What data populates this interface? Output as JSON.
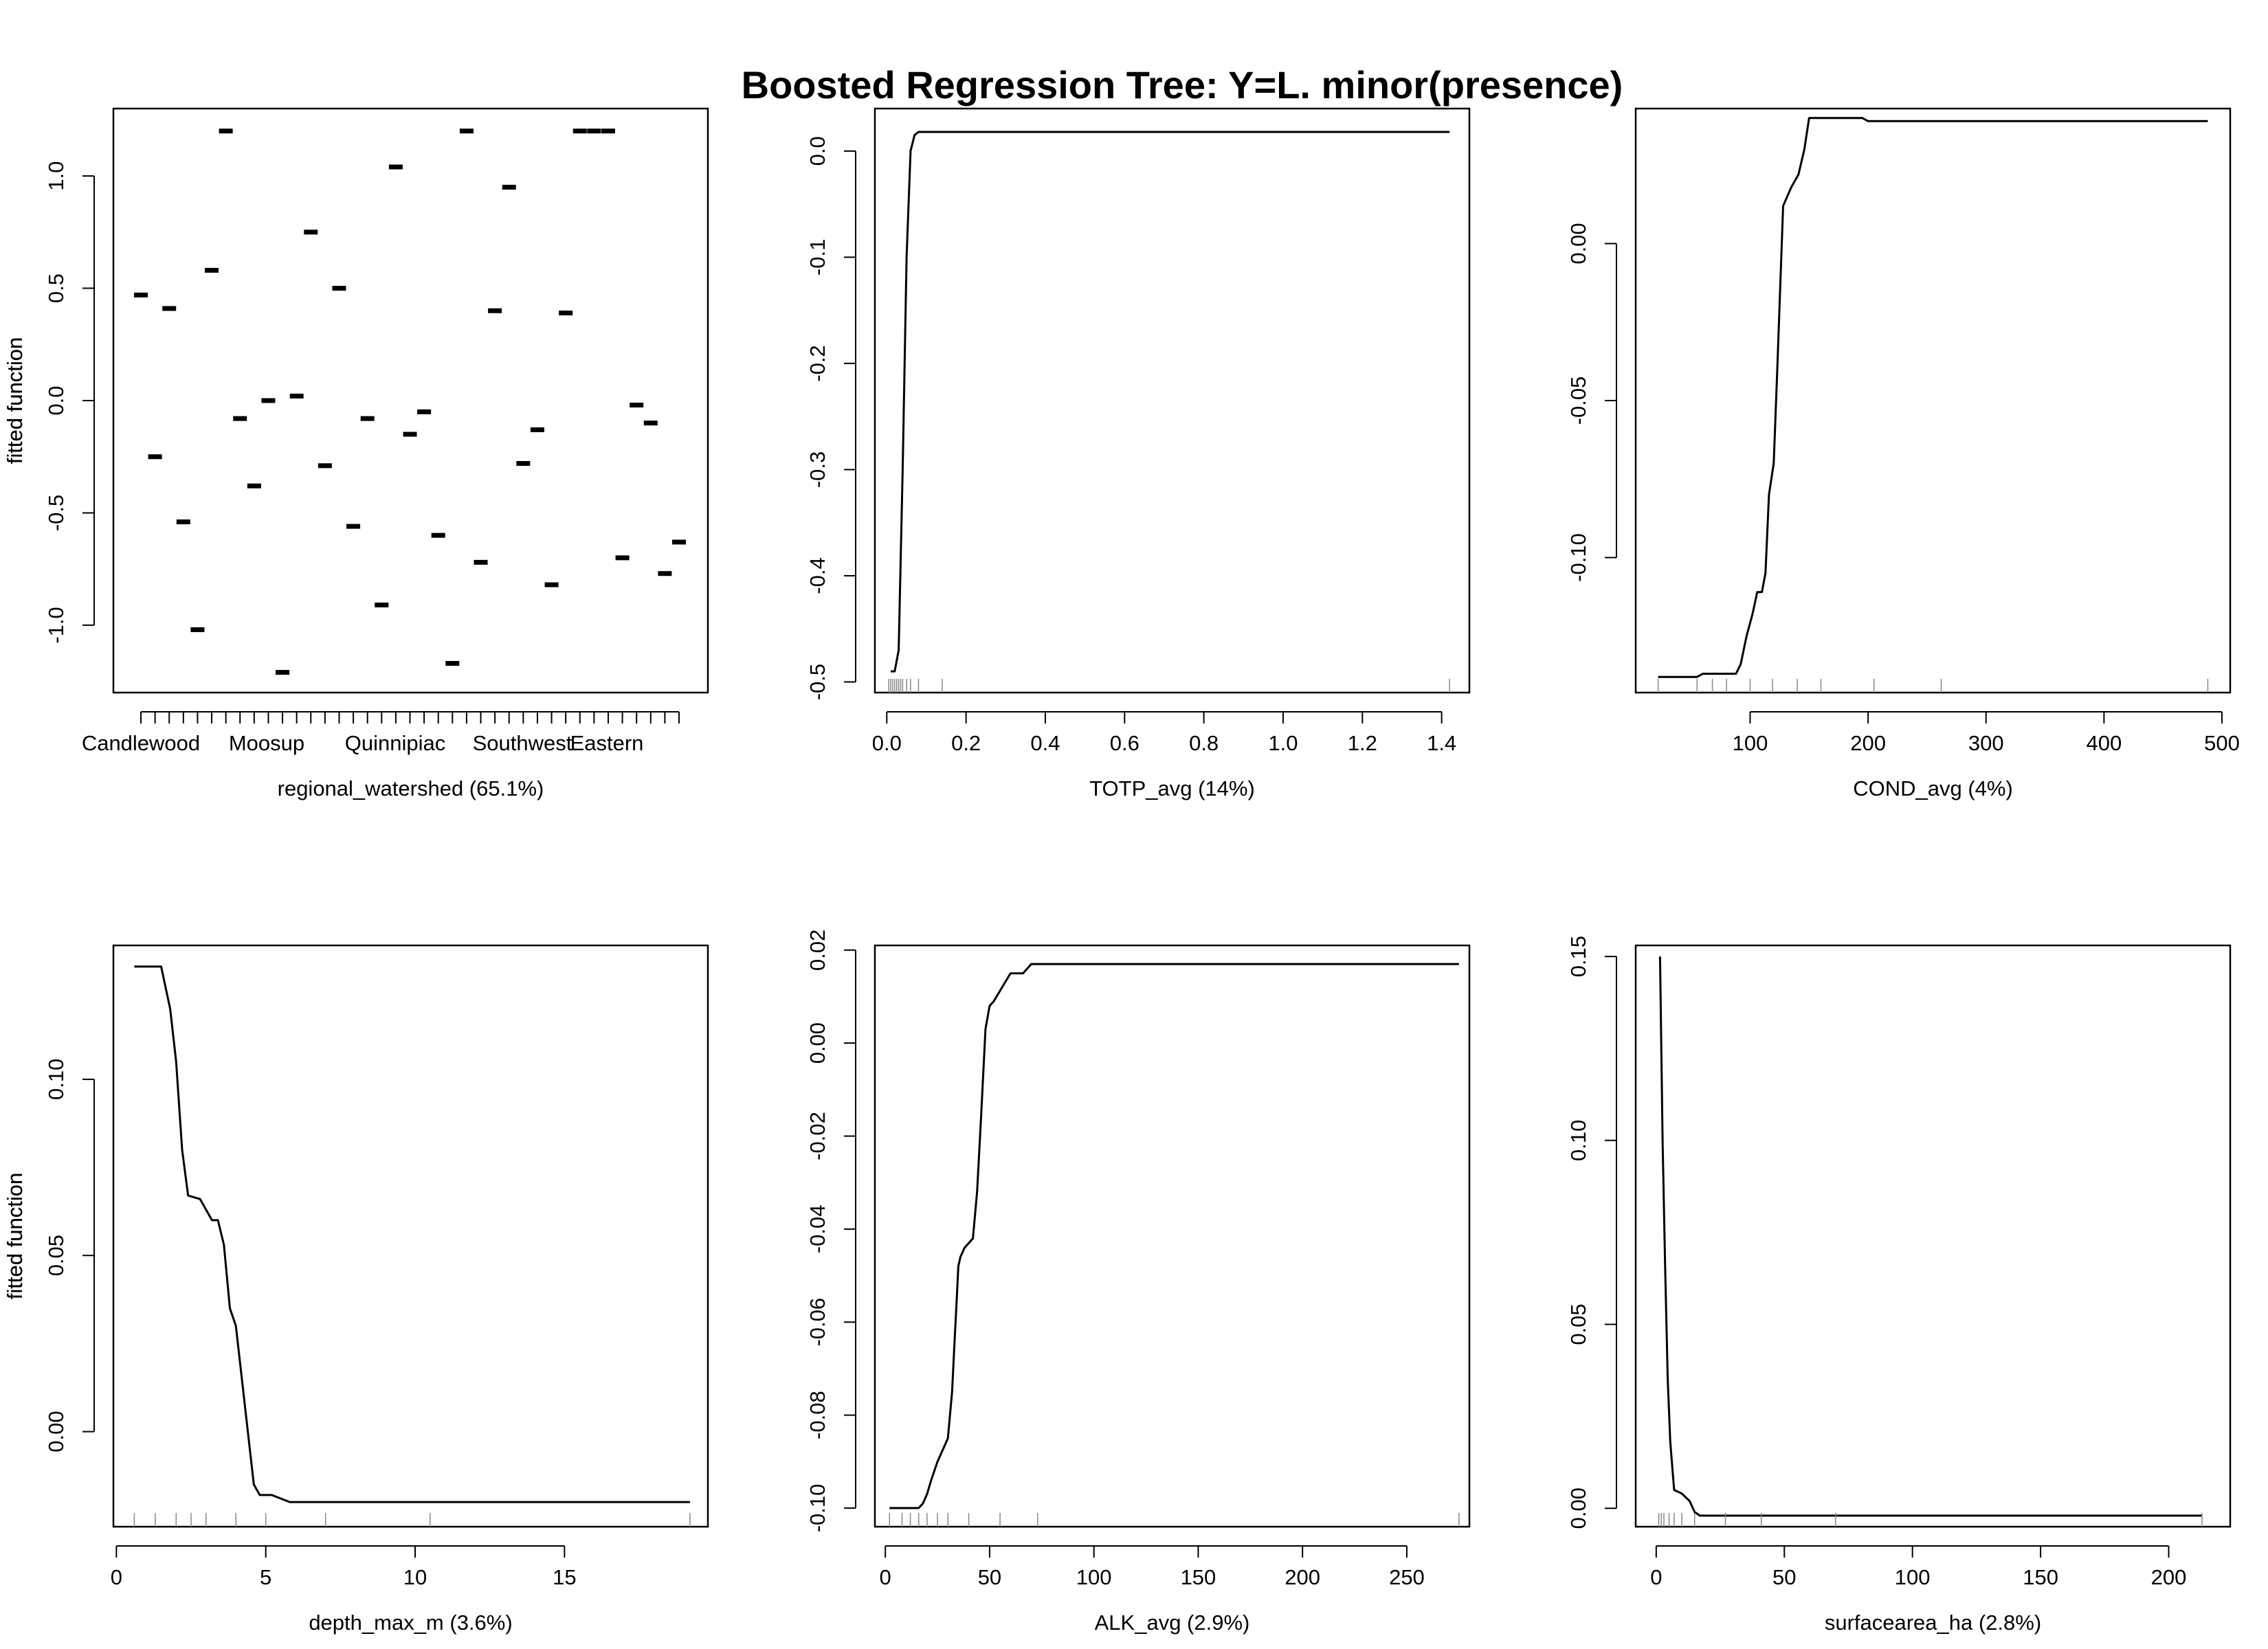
{
  "chart_data": [
    {
      "type": "scatter",
      "title": "Boosted Regression Tree: Y=L. minor(presence)",
      "xlabel": "regional_watershed  (65.1%)",
      "ylabel": "fitted function",
      "ylim": [
        -1.3,
        1.3
      ],
      "yticks": [
        1.0,
        0.5,
        0.0,
        -0.5,
        -1.0
      ],
      "xtick_labels": [
        "Candlewood",
        "Moosup",
        "Quinnipiac",
        "Southwest",
        "Eastern"
      ],
      "category_count": 39,
      "values": [
        0.47,
        -0.25,
        0.41,
        -0.54,
        -1.02,
        0.58,
        1.2,
        -0.08,
        -0.38,
        0.0,
        -1.21,
        0.02,
        0.75,
        -0.29,
        0.5,
        -0.56,
        -0.08,
        -0.91,
        1.04,
        -0.15,
        -0.05,
        -0.6,
        -1.17,
        1.2,
        -0.72,
        0.4,
        0.95,
        -0.28,
        -0.13,
        -0.82,
        0.39,
        1.2,
        1.2,
        1.2,
        -0.7,
        -0.02,
        -0.1,
        -0.77,
        -0.63
      ]
    },
    {
      "type": "line",
      "xlabel": "TOTP_avg  (14%)",
      "ylabel": "fitted function",
      "xlim": [
        -0.03,
        1.47
      ],
      "ylim": [
        -0.51,
        0.04
      ],
      "xticks": [
        0.0,
        0.2,
        0.4,
        0.6,
        0.8,
        1.0,
        1.2,
        1.4
      ],
      "yticks": [
        0.0,
        -0.1,
        -0.2,
        -0.3,
        -0.4,
        -0.5
      ],
      "x": [
        0.01,
        0.02,
        0.03,
        0.04,
        0.05,
        0.06,
        0.07,
        0.08,
        1.42
      ],
      "y": [
        -0.49,
        -0.49,
        -0.47,
        -0.3,
        -0.1,
        0.0,
        0.015,
        0.018,
        0.018
      ],
      "rug": [
        0.005,
        0.01,
        0.015,
        0.02,
        0.025,
        0.03,
        0.035,
        0.04,
        0.05,
        0.06,
        0.08,
        0.14,
        1.42
      ]
    },
    {
      "type": "line",
      "xlabel": "COND_avg  (4%)",
      "ylabel": "fitted function",
      "xlim": [
        3,
        507
      ],
      "ylim": [
        -0.143,
        0.043
      ],
      "xticks": [
        100,
        200,
        300,
        400,
        500
      ],
      "yticks": [
        0.0,
        -0.05,
        -0.1
      ],
      "x": [
        22,
        55,
        60,
        88,
        92,
        97,
        102,
        106,
        110,
        113,
        116,
        120,
        123,
        128,
        135,
        141,
        146,
        150,
        155,
        160,
        195,
        200,
        488
      ],
      "y": [
        -0.138,
        -0.138,
        -0.137,
        -0.137,
        -0.134,
        -0.125,
        -0.118,
        -0.111,
        -0.111,
        -0.105,
        -0.08,
        -0.07,
        -0.04,
        0.012,
        0.018,
        0.022,
        0.03,
        0.04,
        0.04,
        0.04,
        0.04,
        0.039,
        0.039
      ],
      "rug": [
        22,
        55,
        68,
        80,
        100,
        119,
        140,
        160,
        205,
        262,
        488
      ]
    },
    {
      "type": "line",
      "xlabel": "depth_max_m  (3.6%)",
      "ylabel": "fitted function",
      "xlim": [
        -0.1,
        19.8
      ],
      "ylim": [
        -0.027,
        0.138
      ],
      "xticks": [
        0,
        5,
        10,
        15
      ],
      "yticks": [
        0.1,
        0.05,
        0.0
      ],
      "x": [
        0.6,
        1.5,
        1.8,
        2.0,
        2.2,
        2.4,
        2.8,
        3.2,
        3.4,
        3.6,
        3.8,
        4.0,
        4.2,
        4.4,
        4.6,
        4.8,
        5.2,
        5.8,
        19.2
      ],
      "y": [
        0.132,
        0.132,
        0.12,
        0.105,
        0.08,
        0.067,
        0.066,
        0.06,
        0.06,
        0.053,
        0.035,
        0.03,
        0.015,
        0.0,
        -0.015,
        -0.018,
        -0.018,
        -0.02,
        -0.02
      ],
      "rug": [
        0.6,
        1.3,
        2.0,
        2.5,
        3.0,
        4.0,
        5.0,
        7.0,
        10.5,
        19.2
      ]
    },
    {
      "type": "line",
      "xlabel": "ALK_avg  (2.9%)",
      "ylabel": "fitted function",
      "xlim": [
        -5,
        280
      ],
      "ylim": [
        -0.104,
        0.021
      ],
      "xticks": [
        0,
        50,
        100,
        150,
        200,
        250
      ],
      "yticks": [
        0.02,
        0.0,
        -0.02,
        -0.04,
        -0.06,
        -0.08,
        -0.1
      ],
      "x": [
        2,
        16,
        18,
        20,
        22,
        25,
        28,
        30,
        32,
        33,
        34,
        35,
        36,
        38,
        40,
        42,
        44,
        46,
        48,
        50,
        52,
        56,
        60,
        66,
        70,
        72,
        275
      ],
      "y": [
        -0.1,
        -0.1,
        -0.099,
        -0.097,
        -0.094,
        -0.09,
        -0.087,
        -0.085,
        -0.075,
        -0.066,
        -0.057,
        -0.048,
        -0.046,
        -0.044,
        -0.043,
        -0.042,
        -0.032,
        -0.015,
        0.003,
        0.008,
        0.009,
        0.012,
        0.015,
        0.015,
        0.017,
        0.017,
        0.017
      ],
      "rug": [
        2,
        8,
        12,
        16,
        20,
        25,
        30,
        40,
        55,
        73,
        275
      ]
    },
    {
      "type": "line",
      "xlabel": "surfacearea_ha  (2.8%)",
      "ylabel": "fitted function",
      "xlim": [
        -8,
        224
      ],
      "ylim": [
        -0.005,
        0.153
      ],
      "xticks": [
        0,
        50,
        100,
        150,
        200
      ],
      "yticks": [
        0.15,
        0.1,
        0.05,
        0.0
      ],
      "x": [
        1.5,
        2.5,
        3.5,
        4.5,
        5.5,
        7,
        10,
        13,
        15,
        17,
        213
      ],
      "y": [
        0.15,
        0.1,
        0.065,
        0.035,
        0.018,
        0.005,
        0.004,
        0.002,
        -0.001,
        -0.002,
        -0.002
      ],
      "rug": [
        1,
        2,
        3,
        5,
        7,
        10,
        15,
        27,
        41,
        70,
        213
      ]
    }
  ]
}
